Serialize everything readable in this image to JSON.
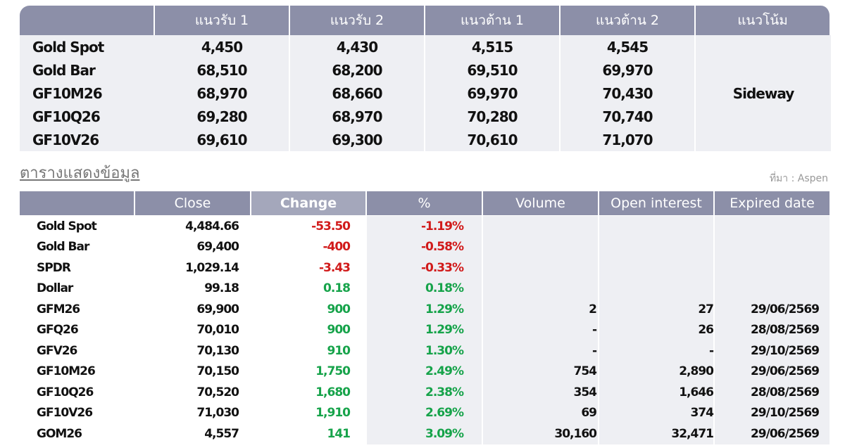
{
  "levels_table": {
    "columns": [
      "แนวรับ 1",
      "แนวรับ 2",
      "แนวต้าน 1",
      "แนวต้าน 2",
      "แนวโน้ม"
    ],
    "rows": [
      [
        "Gold Spot",
        "4,450",
        "4,430",
        "4,515",
        "4,545"
      ],
      [
        "Gold Bar",
        "68,510",
        "68,200",
        "69,510",
        "69,970"
      ],
      [
        "GF10M26",
        "68,970",
        "68,660",
        "69,970",
        "70,430"
      ],
      [
        "GF10Q26",
        "69,280",
        "68,970",
        "70,280",
        "70,740"
      ],
      [
        "GF10V26",
        "69,610",
        "69,300",
        "70,610",
        "71,070"
      ]
    ],
    "trend": "Sideway"
  },
  "section_title": "ตารางแสดงข้อมูล",
  "source": "ที่มา : Aspen",
  "data_table": {
    "columns": [
      "Close",
      "Change",
      "%",
      "Volume",
      "Open interest",
      "Expired date"
    ],
    "rows": [
      [
        "Gold Spot",
        "4,484.66",
        "-53.50",
        "-1.19%"
      ],
      [
        "Gold Bar",
        "69,400",
        "-400",
        "-0.58%"
      ],
      [
        "SPDR",
        "1,029.14",
        "-3.43",
        "-0.33%"
      ],
      [
        "Dollar",
        "99.18",
        "0.18",
        "0.18%"
      ],
      [
        "GFM26",
        "69,900",
        "900",
        "1.29%",
        "2",
        "27",
        "29/06/2569"
      ],
      [
        "GFQ26",
        "70,010",
        "900",
        "1.29%",
        "-",
        "26",
        "28/08/2569"
      ],
      [
        "GFV26",
        "70,130",
        "910",
        "1.30%",
        "-",
        "-",
        "29/10/2569"
      ],
      [
        "GF10M26",
        "70,150",
        "1,750",
        "2.49%",
        "754",
        "2,890",
        "29/06/2569"
      ],
      [
        "GF10Q26",
        "70,520",
        "1,680",
        "2.38%",
        "354",
        "1,646",
        "28/08/2569"
      ],
      [
        "GF10V26",
        "71,030",
        "1,910",
        "2.69%",
        "69",
        "374",
        "29/10/2569"
      ],
      [
        "GOM26",
        "4,557",
        "141",
        "3.09%",
        "30,160",
        "32,471",
        "29/06/2569"
      ]
    ]
  }
}
